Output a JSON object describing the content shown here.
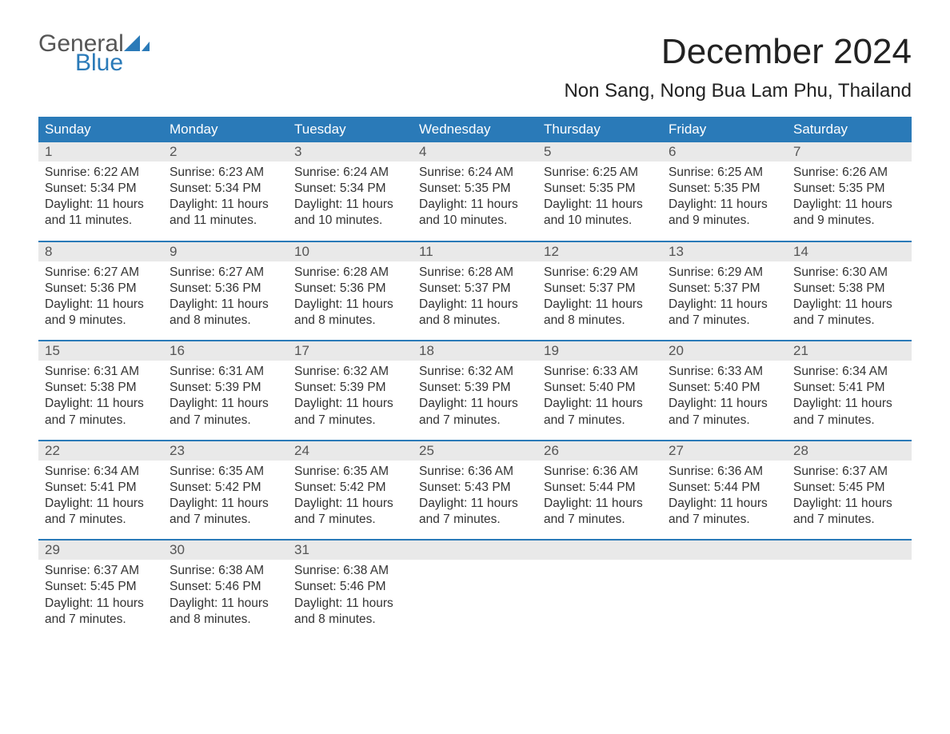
{
  "brand": {
    "word1": "General",
    "word2": "Blue",
    "text_color": "#555555",
    "accent_color": "#2a7ab8"
  },
  "title": "December 2024",
  "location": "Non Sang, Nong Bua Lam Phu, Thailand",
  "colors": {
    "header_bg": "#2a7ab8",
    "header_text": "#ffffff",
    "daynum_bg": "#e9e9e9",
    "daynum_text": "#555555",
    "body_text": "#333333",
    "week_divider": "#2a7ab8",
    "background": "#ffffff"
  },
  "typography": {
    "title_fontsize": 44,
    "location_fontsize": 24,
    "dow_fontsize": 17,
    "cell_fontsize": 15.5
  },
  "calendar": {
    "type": "table",
    "columns": [
      "Sunday",
      "Monday",
      "Tuesday",
      "Wednesday",
      "Thursday",
      "Friday",
      "Saturday"
    ],
    "weeks": [
      [
        {
          "n": "1",
          "sunrise": "Sunrise: 6:22 AM",
          "sunset": "Sunset: 5:34 PM",
          "dl1": "Daylight: 11 hours",
          "dl2": "and 11 minutes."
        },
        {
          "n": "2",
          "sunrise": "Sunrise: 6:23 AM",
          "sunset": "Sunset: 5:34 PM",
          "dl1": "Daylight: 11 hours",
          "dl2": "and 11 minutes."
        },
        {
          "n": "3",
          "sunrise": "Sunrise: 6:24 AM",
          "sunset": "Sunset: 5:34 PM",
          "dl1": "Daylight: 11 hours",
          "dl2": "and 10 minutes."
        },
        {
          "n": "4",
          "sunrise": "Sunrise: 6:24 AM",
          "sunset": "Sunset: 5:35 PM",
          "dl1": "Daylight: 11 hours",
          "dl2": "and 10 minutes."
        },
        {
          "n": "5",
          "sunrise": "Sunrise: 6:25 AM",
          "sunset": "Sunset: 5:35 PM",
          "dl1": "Daylight: 11 hours",
          "dl2": "and 10 minutes."
        },
        {
          "n": "6",
          "sunrise": "Sunrise: 6:25 AM",
          "sunset": "Sunset: 5:35 PM",
          "dl1": "Daylight: 11 hours",
          "dl2": "and 9 minutes."
        },
        {
          "n": "7",
          "sunrise": "Sunrise: 6:26 AM",
          "sunset": "Sunset: 5:35 PM",
          "dl1": "Daylight: 11 hours",
          "dl2": "and 9 minutes."
        }
      ],
      [
        {
          "n": "8",
          "sunrise": "Sunrise: 6:27 AM",
          "sunset": "Sunset: 5:36 PM",
          "dl1": "Daylight: 11 hours",
          "dl2": "and 9 minutes."
        },
        {
          "n": "9",
          "sunrise": "Sunrise: 6:27 AM",
          "sunset": "Sunset: 5:36 PM",
          "dl1": "Daylight: 11 hours",
          "dl2": "and 8 minutes."
        },
        {
          "n": "10",
          "sunrise": "Sunrise: 6:28 AM",
          "sunset": "Sunset: 5:36 PM",
          "dl1": "Daylight: 11 hours",
          "dl2": "and 8 minutes."
        },
        {
          "n": "11",
          "sunrise": "Sunrise: 6:28 AM",
          "sunset": "Sunset: 5:37 PM",
          "dl1": "Daylight: 11 hours",
          "dl2": "and 8 minutes."
        },
        {
          "n": "12",
          "sunrise": "Sunrise: 6:29 AM",
          "sunset": "Sunset: 5:37 PM",
          "dl1": "Daylight: 11 hours",
          "dl2": "and 8 minutes."
        },
        {
          "n": "13",
          "sunrise": "Sunrise: 6:29 AM",
          "sunset": "Sunset: 5:37 PM",
          "dl1": "Daylight: 11 hours",
          "dl2": "and 7 minutes."
        },
        {
          "n": "14",
          "sunrise": "Sunrise: 6:30 AM",
          "sunset": "Sunset: 5:38 PM",
          "dl1": "Daylight: 11 hours",
          "dl2": "and 7 minutes."
        }
      ],
      [
        {
          "n": "15",
          "sunrise": "Sunrise: 6:31 AM",
          "sunset": "Sunset: 5:38 PM",
          "dl1": "Daylight: 11 hours",
          "dl2": "and 7 minutes."
        },
        {
          "n": "16",
          "sunrise": "Sunrise: 6:31 AM",
          "sunset": "Sunset: 5:39 PM",
          "dl1": "Daylight: 11 hours",
          "dl2": "and 7 minutes."
        },
        {
          "n": "17",
          "sunrise": "Sunrise: 6:32 AM",
          "sunset": "Sunset: 5:39 PM",
          "dl1": "Daylight: 11 hours",
          "dl2": "and 7 minutes."
        },
        {
          "n": "18",
          "sunrise": "Sunrise: 6:32 AM",
          "sunset": "Sunset: 5:39 PM",
          "dl1": "Daylight: 11 hours",
          "dl2": "and 7 minutes."
        },
        {
          "n": "19",
          "sunrise": "Sunrise: 6:33 AM",
          "sunset": "Sunset: 5:40 PM",
          "dl1": "Daylight: 11 hours",
          "dl2": "and 7 minutes."
        },
        {
          "n": "20",
          "sunrise": "Sunrise: 6:33 AM",
          "sunset": "Sunset: 5:40 PM",
          "dl1": "Daylight: 11 hours",
          "dl2": "and 7 minutes."
        },
        {
          "n": "21",
          "sunrise": "Sunrise: 6:34 AM",
          "sunset": "Sunset: 5:41 PM",
          "dl1": "Daylight: 11 hours",
          "dl2": "and 7 minutes."
        }
      ],
      [
        {
          "n": "22",
          "sunrise": "Sunrise: 6:34 AM",
          "sunset": "Sunset: 5:41 PM",
          "dl1": "Daylight: 11 hours",
          "dl2": "and 7 minutes."
        },
        {
          "n": "23",
          "sunrise": "Sunrise: 6:35 AM",
          "sunset": "Sunset: 5:42 PM",
          "dl1": "Daylight: 11 hours",
          "dl2": "and 7 minutes."
        },
        {
          "n": "24",
          "sunrise": "Sunrise: 6:35 AM",
          "sunset": "Sunset: 5:42 PM",
          "dl1": "Daylight: 11 hours",
          "dl2": "and 7 minutes."
        },
        {
          "n": "25",
          "sunrise": "Sunrise: 6:36 AM",
          "sunset": "Sunset: 5:43 PM",
          "dl1": "Daylight: 11 hours",
          "dl2": "and 7 minutes."
        },
        {
          "n": "26",
          "sunrise": "Sunrise: 6:36 AM",
          "sunset": "Sunset: 5:44 PM",
          "dl1": "Daylight: 11 hours",
          "dl2": "and 7 minutes."
        },
        {
          "n": "27",
          "sunrise": "Sunrise: 6:36 AM",
          "sunset": "Sunset: 5:44 PM",
          "dl1": "Daylight: 11 hours",
          "dl2": "and 7 minutes."
        },
        {
          "n": "28",
          "sunrise": "Sunrise: 6:37 AM",
          "sunset": "Sunset: 5:45 PM",
          "dl1": "Daylight: 11 hours",
          "dl2": "and 7 minutes."
        }
      ],
      [
        {
          "n": "29",
          "sunrise": "Sunrise: 6:37 AM",
          "sunset": "Sunset: 5:45 PM",
          "dl1": "Daylight: 11 hours",
          "dl2": "and 7 minutes."
        },
        {
          "n": "30",
          "sunrise": "Sunrise: 6:38 AM",
          "sunset": "Sunset: 5:46 PM",
          "dl1": "Daylight: 11 hours",
          "dl2": "and 8 minutes."
        },
        {
          "n": "31",
          "sunrise": "Sunrise: 6:38 AM",
          "sunset": "Sunset: 5:46 PM",
          "dl1": "Daylight: 11 hours",
          "dl2": "and 8 minutes."
        },
        null,
        null,
        null,
        null
      ]
    ]
  }
}
